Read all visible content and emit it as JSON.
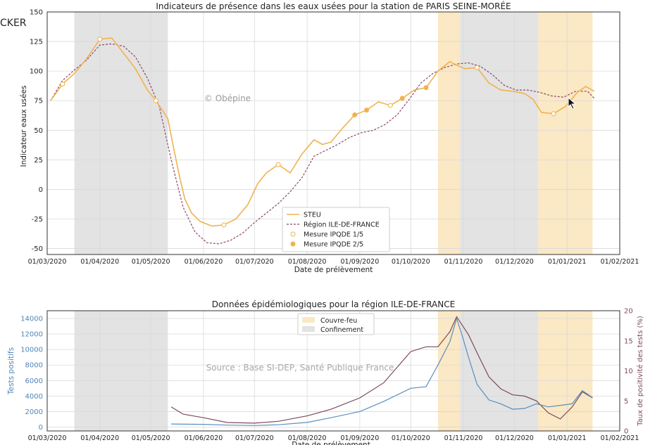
{
  "overlay": {
    "cut_text": "CKER",
    "watermark_top": "© Obépine",
    "watermark_bottom": "Source : Base SI-DEP, Santé Publique France"
  },
  "chart_data": [
    {
      "type": "line",
      "title": "Indicateurs de présence dans les eaux usées pour la station de PARIS SEINE-MORÉE",
      "xlabel": "Date de prélèvement",
      "ylabel": "Indicateur eaux usées",
      "xlim": [
        "2020-03-01",
        "2021-02-01"
      ],
      "ylim": [
        -55,
        150
      ],
      "yticks": [
        -50,
        -25,
        0,
        25,
        50,
        75,
        100,
        125,
        150
      ],
      "xticks": [
        "01/03/2020",
        "01/04/2020",
        "01/05/2020",
        "01/06/2020",
        "01/07/2020",
        "01/08/2020",
        "01/09/2020",
        "01/10/2020",
        "01/11/2020",
        "01/12/2020",
        "01/01/2021",
        "01/02/2021"
      ],
      "shaded_periods": [
        {
          "kind": "Confinement",
          "color": "#e3e3e3",
          "start": "2020-03-17",
          "end": "2020-05-11"
        },
        {
          "kind": "Couvre-feu",
          "color": "#fbe8c4",
          "start": "2020-10-17",
          "end": "2020-10-30"
        },
        {
          "kind": "Confinement",
          "color": "#e3e3e3",
          "start": "2020-10-30",
          "end": "2020-12-15"
        },
        {
          "kind": "Couvre-feu",
          "color": "#fbe8c4",
          "start": "2020-12-15",
          "end": "2021-01-16"
        }
      ],
      "legend": {
        "position": "lower-center",
        "entries": [
          "STEU",
          "Région ILE-DE-FRANCE",
          "Mesure IPQDE 1/5",
          "Mesure IPQDE 2/5"
        ]
      },
      "series": [
        {
          "name": "STEU",
          "color": "#f0b24e",
          "points": [
            [
              "2020-03-03",
              75
            ],
            [
              "2020-03-10",
              89
            ],
            [
              "2020-03-17",
              98
            ],
            [
              "2020-03-24",
              110
            ],
            [
              "2020-04-01",
              127
            ],
            [
              "2020-04-08",
              128
            ],
            [
              "2020-04-15",
              115
            ],
            [
              "2020-04-22",
              102
            ],
            [
              "2020-04-29",
              84
            ],
            [
              "2020-05-04",
              75
            ],
            [
              "2020-05-11",
              60
            ],
            [
              "2020-05-14",
              38
            ],
            [
              "2020-05-18",
              10
            ],
            [
              "2020-05-21",
              -8
            ],
            [
              "2020-05-25",
              -20
            ],
            [
              "2020-05-30",
              -27
            ],
            [
              "2020-06-06",
              -31
            ],
            [
              "2020-06-13",
              -30
            ],
            [
              "2020-06-20",
              -25
            ],
            [
              "2020-06-27",
              -13
            ],
            [
              "2020-07-03",
              5
            ],
            [
              "2020-07-08",
              14
            ],
            [
              "2020-07-15",
              21
            ],
            [
              "2020-07-22",
              14
            ],
            [
              "2020-07-29",
              30
            ],
            [
              "2020-08-05",
              42
            ],
            [
              "2020-08-10",
              38
            ],
            [
              "2020-08-15",
              40
            ],
            [
              "2020-08-22",
              52
            ],
            [
              "2020-08-29",
              63
            ],
            [
              "2020-09-05",
              67
            ],
            [
              "2020-09-12",
              74
            ],
            [
              "2020-09-19",
              71
            ],
            [
              "2020-09-26",
              77
            ],
            [
              "2020-10-03",
              84
            ],
            [
              "2020-10-10",
              86
            ],
            [
              "2020-10-17",
              100
            ],
            [
              "2020-10-24",
              108
            ],
            [
              "2020-10-28",
              105
            ],
            [
              "2020-11-02",
              102
            ],
            [
              "2020-11-09",
              103
            ],
            [
              "2020-11-16",
              90
            ],
            [
              "2020-11-23",
              84
            ],
            [
              "2020-11-30",
              83
            ],
            [
              "2020-12-07",
              81
            ],
            [
              "2020-12-12",
              76
            ],
            [
              "2020-12-17",
              65
            ],
            [
              "2020-12-24",
              64
            ],
            [
              "2020-12-31",
              70
            ],
            [
              "2021-01-07",
              82
            ],
            [
              "2021-01-12",
              87
            ],
            [
              "2021-01-17",
              83
            ]
          ]
        },
        {
          "name": "Région ILE-DE-FRANCE",
          "color": "#8a4a6b",
          "points": [
            [
              "2020-03-03",
              75
            ],
            [
              "2020-03-10",
              92
            ],
            [
              "2020-03-17",
              101
            ],
            [
              "2020-03-24",
              109
            ],
            [
              "2020-04-01",
              122
            ],
            [
              "2020-04-08",
              123
            ],
            [
              "2020-04-15",
              121
            ],
            [
              "2020-04-22",
              112
            ],
            [
              "2020-04-29",
              94
            ],
            [
              "2020-05-06",
              70
            ],
            [
              "2020-05-13",
              25
            ],
            [
              "2020-05-20",
              -15
            ],
            [
              "2020-05-27",
              -36
            ],
            [
              "2020-06-03",
              -45
            ],
            [
              "2020-06-10",
              -46
            ],
            [
              "2020-06-17",
              -43
            ],
            [
              "2020-06-24",
              -37
            ],
            [
              "2020-07-01",
              -28
            ],
            [
              "2020-07-08",
              -20
            ],
            [
              "2020-07-15",
              -12
            ],
            [
              "2020-07-22",
              -2
            ],
            [
              "2020-07-29",
              10
            ],
            [
              "2020-08-05",
              28
            ],
            [
              "2020-08-12",
              33
            ],
            [
              "2020-08-19",
              38
            ],
            [
              "2020-08-26",
              44
            ],
            [
              "2020-09-02",
              48
            ],
            [
              "2020-09-09",
              50
            ],
            [
              "2020-09-16",
              55
            ],
            [
              "2020-09-23",
              63
            ],
            [
              "2020-09-30",
              76
            ],
            [
              "2020-10-07",
              90
            ],
            [
              "2020-10-14",
              98
            ],
            [
              "2020-10-21",
              103
            ],
            [
              "2020-10-28",
              106
            ],
            [
              "2020-11-04",
              107
            ],
            [
              "2020-11-11",
              104
            ],
            [
              "2020-11-18",
              97
            ],
            [
              "2020-11-25",
              88
            ],
            [
              "2020-12-02",
              84
            ],
            [
              "2020-12-09",
              84
            ],
            [
              "2020-12-16",
              82
            ],
            [
              "2020-12-23",
              79
            ],
            [
              "2020-12-30",
              78
            ],
            [
              "2021-01-06",
              83
            ],
            [
              "2021-01-13",
              83
            ],
            [
              "2021-01-17",
              77
            ]
          ]
        }
      ],
      "markers": {
        "ipqde_1_5": [
          "2020-03-10",
          "2020-04-01",
          "2020-05-04",
          "2020-06-13",
          "2020-07-15",
          "2020-09-19",
          "2020-11-09",
          "2020-12-24"
        ],
        "ipqde_2_5": [
          "2020-08-29",
          "2020-09-05",
          "2020-09-26",
          "2020-10-10"
        ]
      }
    },
    {
      "type": "line",
      "title": "Données épidémiologiques pour la région ILE-DE-FRANCE",
      "xlabel": "Date de prélèvement",
      "ylabel_left": "Tests positifs",
      "ylabel_right": "Taux de positivité des tests (%)",
      "xlim": [
        "2020-03-01",
        "2021-02-01"
      ],
      "ylim_left": [
        -500,
        15000
      ],
      "ylim_right": [
        0,
        20
      ],
      "yticks_left": [
        0,
        2000,
        4000,
        6000,
        8000,
        10000,
        12000,
        14000
      ],
      "yticks_right": [
        0,
        5,
        10,
        15,
        20
      ],
      "xticks": [
        "01/03/2020",
        "01/04/2020",
        "01/05/2020",
        "01/06/2020",
        "01/07/2020",
        "01/08/2020",
        "01/09/2020",
        "01/10/2020",
        "01/11/2020",
        "01/12/2020",
        "01/01/2021",
        "01/02/2021"
      ],
      "legend": {
        "position": "top-center",
        "entries": [
          "Couvre-feu",
          "Confinement"
        ]
      },
      "series": [
        {
          "name": "Tests positifs",
          "axis": "left",
          "color": "#5a8fbf",
          "points": [
            [
              "2020-05-13",
              400
            ],
            [
              "2020-06-01",
              350
            ],
            [
              "2020-06-15",
              250
            ],
            [
              "2020-07-01",
              200
            ],
            [
              "2020-07-15",
              300
            ],
            [
              "2020-08-01",
              600
            ],
            [
              "2020-08-15",
              1200
            ],
            [
              "2020-09-01",
              2000
            ],
            [
              "2020-09-15",
              3300
            ],
            [
              "2020-10-01",
              5000
            ],
            [
              "2020-10-10",
              5200
            ],
            [
              "2020-10-17",
              8000
            ],
            [
              "2020-10-24",
              11000
            ],
            [
              "2020-10-28",
              14000
            ],
            [
              "2020-10-31",
              12000
            ],
            [
              "2020-11-04",
              9000
            ],
            [
              "2020-11-09",
              5500
            ],
            [
              "2020-11-16",
              3500
            ],
            [
              "2020-11-23",
              3000
            ],
            [
              "2020-11-30",
              2300
            ],
            [
              "2020-12-07",
              2400
            ],
            [
              "2020-12-14",
              3000
            ],
            [
              "2020-12-21",
              2600
            ],
            [
              "2020-12-28",
              2800
            ],
            [
              "2021-01-04",
              3000
            ],
            [
              "2021-01-10",
              4700
            ],
            [
              "2021-01-16",
              3800
            ]
          ]
        },
        {
          "name": "Taux de positivité",
          "axis": "right",
          "color": "#7d4a5c",
          "points": [
            [
              "2020-05-13",
              4
            ],
            [
              "2020-05-20",
              2.8
            ],
            [
              "2020-06-01",
              2.2
            ],
            [
              "2020-06-15",
              1.4
            ],
            [
              "2020-07-01",
              1.3
            ],
            [
              "2020-07-15",
              1.6
            ],
            [
              "2020-08-01",
              2.5
            ],
            [
              "2020-08-15",
              3.6
            ],
            [
              "2020-09-01",
              5.5
            ],
            [
              "2020-09-15",
              8
            ],
            [
              "2020-10-01",
              13.2
            ],
            [
              "2020-10-10",
              14
            ],
            [
              "2020-10-17",
              14
            ],
            [
              "2020-10-24",
              16.5
            ],
            [
              "2020-10-28",
              19
            ],
            [
              "2020-11-04",
              16
            ],
            [
              "2020-11-09",
              13
            ],
            [
              "2020-11-16",
              9
            ],
            [
              "2020-11-23",
              7
            ],
            [
              "2020-11-30",
              6
            ],
            [
              "2020-12-07",
              5.8
            ],
            [
              "2020-12-14",
              5
            ],
            [
              "2020-12-21",
              3
            ],
            [
              "2020-12-28",
              2
            ],
            [
              "2021-01-04",
              4
            ],
            [
              "2021-01-10",
              6.5
            ],
            [
              "2021-01-16",
              5.5
            ]
          ]
        }
      ]
    }
  ]
}
